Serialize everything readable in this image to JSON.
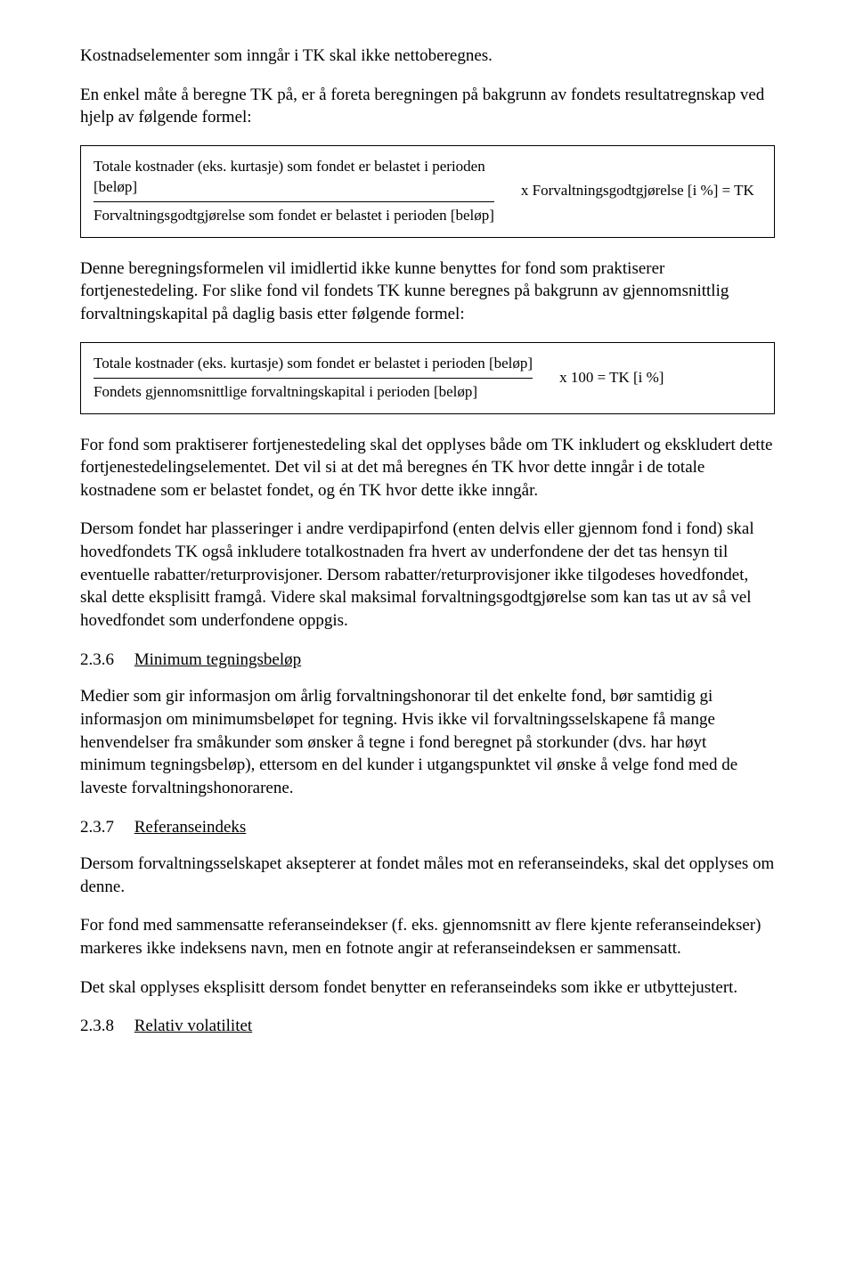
{
  "p1": "Kostnadselementer som inngår i TK skal ikke nettoberegnes.",
  "p2": "En enkel måte å beregne TK på, er å foreta beregningen på bakgrunn av fondets resultatregnskap ved hjelp av følgende formel:",
  "formula1": {
    "num_line1": "Totale kostnader (eks. kurtasje) som fondet er belastet i perioden",
    "num_line2": "[beløp]",
    "den": "Forvaltningsgodtgjørelse som fondet er belastet i perioden [beløp]",
    "rhs": "x Forvaltningsgodtgjørelse [i %] = TK"
  },
  "p3": "Denne beregningsformelen vil imidlertid ikke kunne benyttes for fond som praktiserer fortjenestedeling. For slike fond vil fondets TK kunne beregnes på bakgrunn av gjennomsnittlig forvaltningskapital på daglig basis etter følgende formel:",
  "formula2": {
    "num": "Totale kostnader (eks. kurtasje) som fondet er belastet i perioden [beløp]",
    "den": "Fondets gjennomsnittlige forvaltningskapital i perioden [beløp]",
    "rhs": "x 100 = TK [i %]"
  },
  "p4": "For fond som praktiserer fortjenestedeling skal det opplyses både om TK inkludert og ekskludert dette fortjenestedelingselementet. Det vil si at det må beregnes én TK hvor dette inngår i de totale kostnadene som er belastet fondet, og én TK hvor dette ikke inngår.",
  "p5": "Dersom fondet har plasseringer i andre verdipapirfond (enten delvis eller gjennom fond i fond) skal hovedfondets TK også inkludere totalkostnaden fra hvert av underfondene der det tas hensyn til eventuelle rabatter/returprovisjoner. Dersom rabatter/returprovisjoner ikke tilgodeses hovedfondet, skal dette eksplisitt framgå. Videre skal maksimal forvaltningsgodtgjørelse som kan tas ut av så vel hovedfondet som underfondene oppgis.",
  "s236": {
    "num": "2.3.6",
    "title": "Minimum tegningsbeløp"
  },
  "p6": "Medier som gir informasjon om årlig forvaltningshonorar til det enkelte fond, bør samtidig gi informasjon om minimumsbeløpet for tegning. Hvis ikke vil forvaltningsselskapene få mange henvendelser fra småkunder som ønsker å tegne i fond beregnet på storkunder (dvs. har høyt minimum tegningsbeløp), ettersom en del kunder i utgangspunktet vil ønske å velge fond med de laveste forvaltningshonorarene.",
  "s237": {
    "num": "2.3.7",
    "title": "Referanseindeks"
  },
  "p7": "Dersom forvaltningsselskapet aksepterer at fondet måles mot en referanseindeks, skal det opplyses om denne.",
  "p8": "For fond med sammensatte referanseindekser (f. eks. gjennomsnitt av flere kjente referanseindekser) markeres ikke indeksens navn, men en fotnote angir at referanseindeksen er sammensatt.",
  "p9": "Det skal opplyses eksplisitt dersom fondet benytter en referanseindeks som ikke er utbyttejustert.",
  "s238": {
    "num": "2.3.8",
    "title": "Relativ volatilitet"
  }
}
